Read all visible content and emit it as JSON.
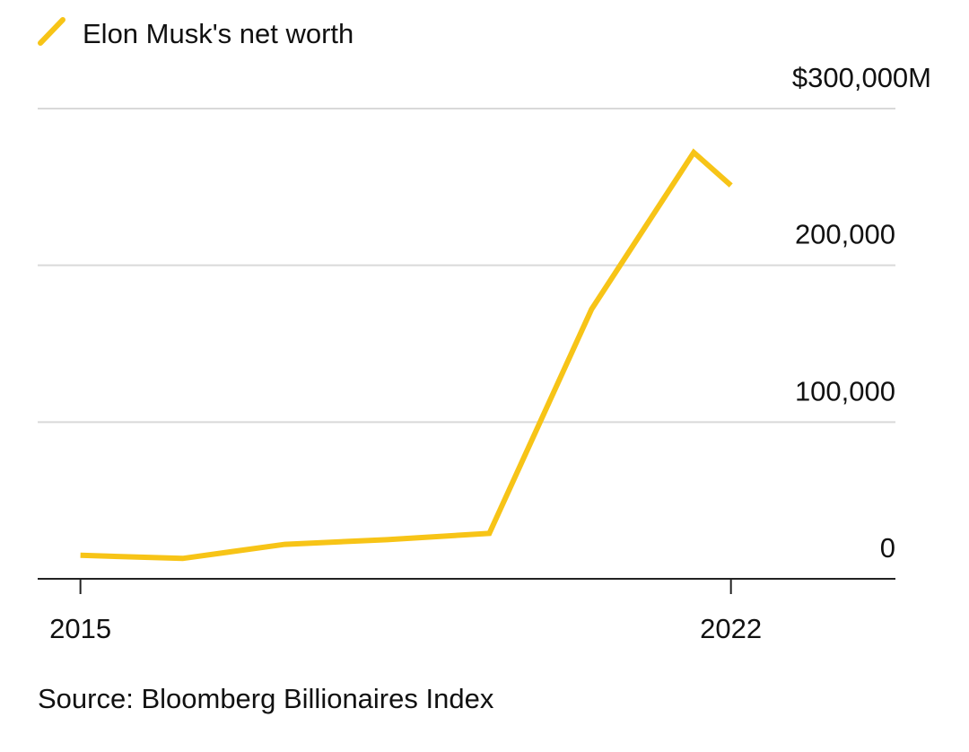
{
  "chart_data": {
    "type": "line",
    "series": [
      {
        "name": "Elon Musk's net worth",
        "color": "#f7c417",
        "x": [
          2015,
          2016.1,
          2017.2,
          2018.3,
          2019.4,
          2020.5,
          2021.6,
          2022.0
        ],
        "values": [
          15000,
          13000,
          22000,
          25000,
          29000,
          172000,
          272000,
          251000
        ]
      }
    ],
    "xlim": [
      2014.54,
      2023.77
    ],
    "xticks": [
      2015,
      2022
    ],
    "ylim": [
      0,
      300000
    ],
    "yticks": [
      0,
      {
        "value": 100000,
        "label": "100,000"
      },
      {
        "value": 200000,
        "label": "200,000"
      },
      {
        "value": 300000,
        "label": "$300,000M"
      }
    ],
    "grid": true,
    "source": "Source: Bloomberg Billionaires Index"
  }
}
